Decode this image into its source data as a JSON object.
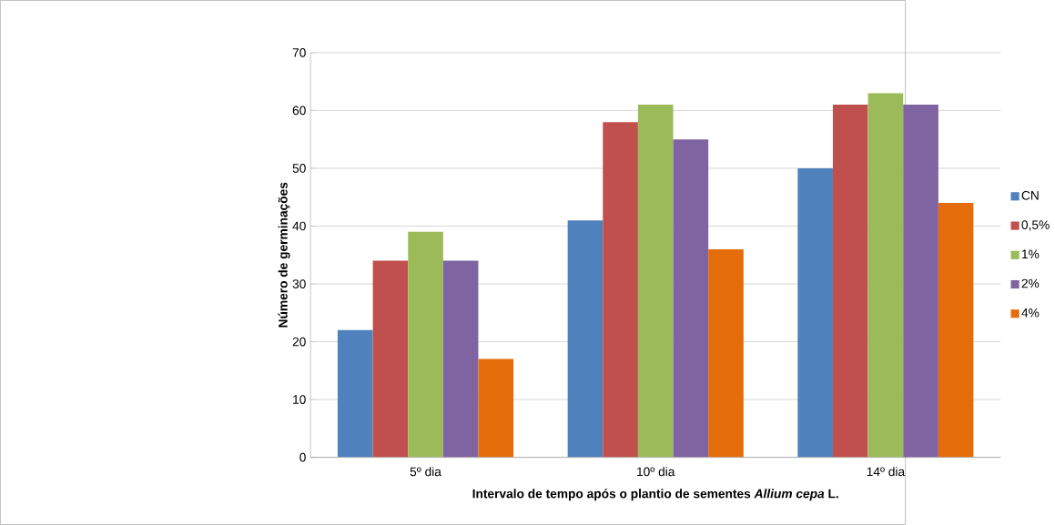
{
  "chart_data": {
    "type": "bar",
    "xlabel": "Intervalo de tempo após o plantio de sementes *Allium cepa* L.",
    "ylabel": "Número de germinações",
    "categories": [
      "5º dia",
      "10º dia",
      "14º dia"
    ],
    "series": [
      {
        "name": "CN",
        "color": "#4f81bd",
        "values": [
          22,
          41,
          50
        ]
      },
      {
        "name": "0,5%",
        "color": "#c0504d",
        "values": [
          34,
          58,
          61
        ]
      },
      {
        "name": "1%",
        "color": "#9bbb59",
        "values": [
          39,
          61,
          63
        ]
      },
      {
        "name": "2%",
        "color": "#8064a2",
        "values": [
          34,
          55,
          61
        ]
      },
      {
        "name": "4%",
        "color": "#e46c0a",
        "values": [
          17,
          36,
          44
        ]
      }
    ],
    "ylim": [
      0,
      70
    ],
    "yticks": [
      0,
      10,
      20,
      30,
      40,
      50,
      60,
      70
    ],
    "grid": "y",
    "legend": "right"
  }
}
